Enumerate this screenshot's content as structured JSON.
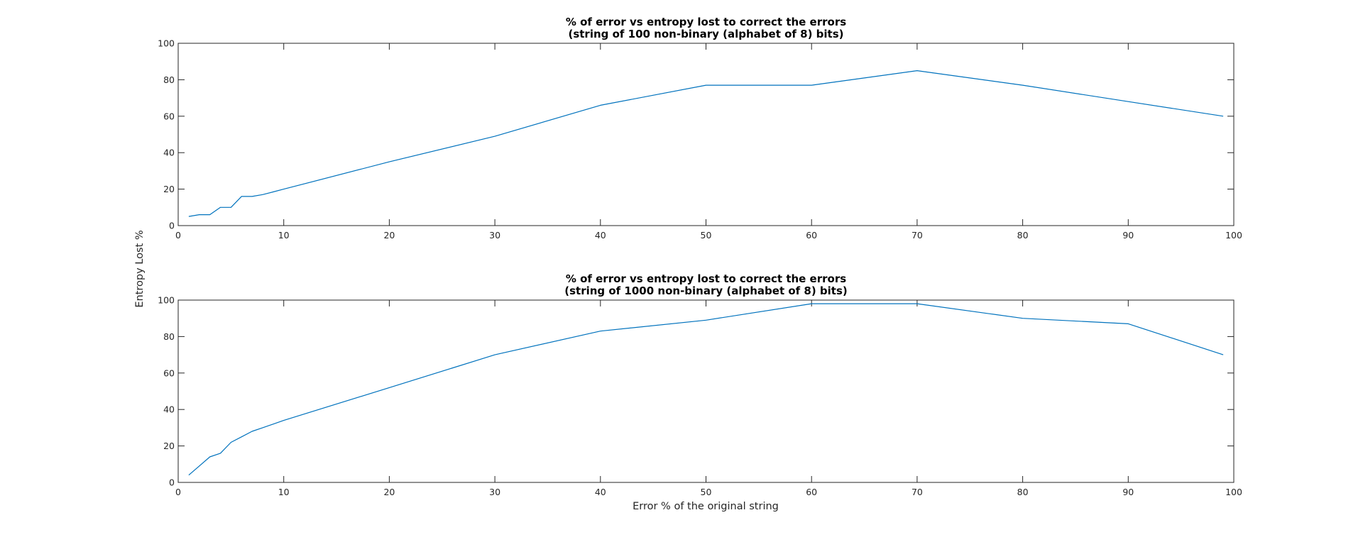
{
  "figure": {
    "ylabel": "Entropy Lost %",
    "xlabel": "Error % of the original string"
  },
  "chart_data": [
    {
      "type": "line",
      "title": "% of error vs entropy lost to correct the errors",
      "subtitle": "(string of 100 non-binary (alphabet of 8) bits)",
      "xlim": [
        0,
        100
      ],
      "ylim": [
        0,
        100
      ],
      "xticks": [
        "0",
        "10",
        "20",
        "30",
        "40",
        "50",
        "60",
        "70",
        "80",
        "90",
        "100"
      ],
      "yticks": [
        "0",
        "20",
        "40",
        "60",
        "80",
        "100"
      ],
      "grid": false,
      "series": [
        {
          "color": "#0072BD",
          "x": [
            1,
            2,
            3,
            4,
            5,
            6,
            7,
            8,
            9,
            10,
            20,
            30,
            40,
            50,
            60,
            70,
            80,
            90,
            99
          ],
          "y": [
            5,
            6,
            6,
            10,
            10,
            16,
            16,
            17,
            18.5,
            20,
            35,
            49,
            66,
            77,
            77,
            85,
            77,
            68,
            60
          ]
        }
      ]
    },
    {
      "type": "line",
      "title": "% of error vs entropy lost to correct the errors",
      "subtitle": "(string of 1000 non-binary (alphabet of 8) bits)",
      "xlim": [
        0,
        100
      ],
      "ylim": [
        0,
        100
      ],
      "xticks": [
        "0",
        "10",
        "20",
        "30",
        "40",
        "50",
        "60",
        "70",
        "80",
        "90",
        "100"
      ],
      "yticks": [
        "0",
        "20",
        "40",
        "60",
        "80",
        "100"
      ],
      "grid": false,
      "series": [
        {
          "color": "#0072BD",
          "x": [
            1,
            2,
            3,
            4,
            5,
            6,
            7,
            8,
            9,
            10,
            20,
            30,
            40,
            50,
            60,
            70,
            80,
            90,
            99
          ],
          "y": [
            4,
            9,
            14,
            16,
            22,
            25,
            28,
            30,
            32,
            34,
            52,
            70,
            83,
            89,
            98,
            98,
            90,
            87,
            70
          ]
        }
      ]
    }
  ]
}
